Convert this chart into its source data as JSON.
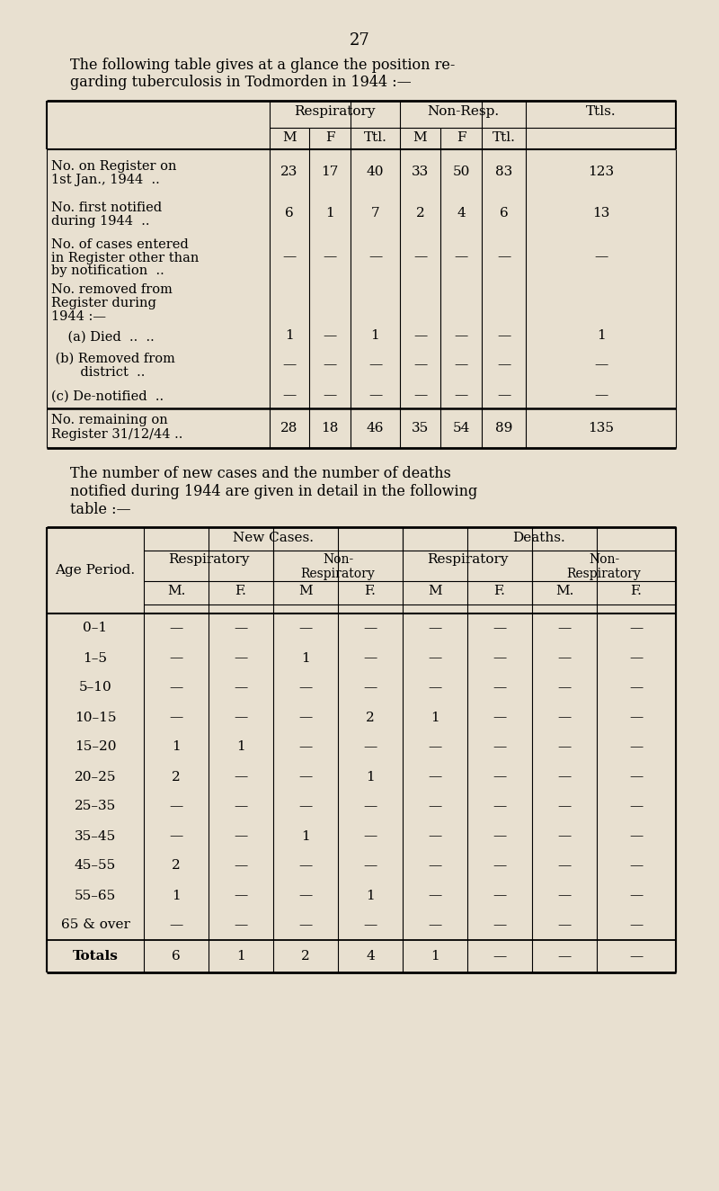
{
  "bg_color": "#e8e0d0",
  "page_number": "27",
  "intro_text1": "The following table gives at a glance the position re-",
  "intro_text2": "garding tuberculosis in Todmorden in 1944 :—",
  "table1": {
    "footer_vals": [
      "28",
      "18",
      "46",
      "35",
      "54",
      "89",
      "135"
    ]
  },
  "mid_text1": "The number of new cases and the number of deaths",
  "mid_text2": "notified during 1944 are given in detail in the following",
  "mid_text3": "table :—",
  "table2": {
    "age_periods": [
      "0–1",
      "1–5",
      "5–10",
      "10–15",
      "15–20",
      "20–25",
      "25–35",
      "35–45",
      "45–55",
      "55–65",
      "65 & over"
    ],
    "new_cases_resp_M": [
      "—",
      "—",
      "—",
      "—",
      "1",
      "2",
      "—",
      "—",
      "2",
      "1",
      "—"
    ],
    "new_cases_resp_F": [
      "—",
      "—",
      "—",
      "—",
      "1",
      "—",
      "—",
      "—",
      "—",
      "—",
      "—"
    ],
    "new_cases_nonresp_M": [
      "—",
      "1",
      "—",
      "—",
      "—",
      "—",
      "—",
      "1",
      "—",
      "—",
      "—"
    ],
    "new_cases_nonresp_F": [
      "—",
      "—",
      "—",
      "2",
      "—",
      "1",
      "—",
      "—",
      "—",
      "1",
      "—"
    ],
    "deaths_resp_M": [
      "—",
      "—",
      "—",
      "1",
      "—",
      "—",
      "—",
      "—",
      "—",
      "—",
      "—"
    ],
    "deaths_resp_F": [
      "—",
      "—",
      "—",
      "—",
      "—",
      "—",
      "—",
      "—",
      "—",
      "—",
      "—"
    ],
    "deaths_nonresp_M": [
      "—",
      "—",
      "—",
      "—",
      "—",
      "—",
      "—",
      "—",
      "—",
      "—",
      "—"
    ],
    "deaths_nonresp_F": [
      "—",
      "—",
      "—",
      "—",
      "—",
      "—",
      "—",
      "—",
      "—",
      "—",
      "—"
    ],
    "totals": [
      "6",
      "1",
      "2",
      "4",
      "1",
      "—",
      "—",
      "—"
    ]
  }
}
